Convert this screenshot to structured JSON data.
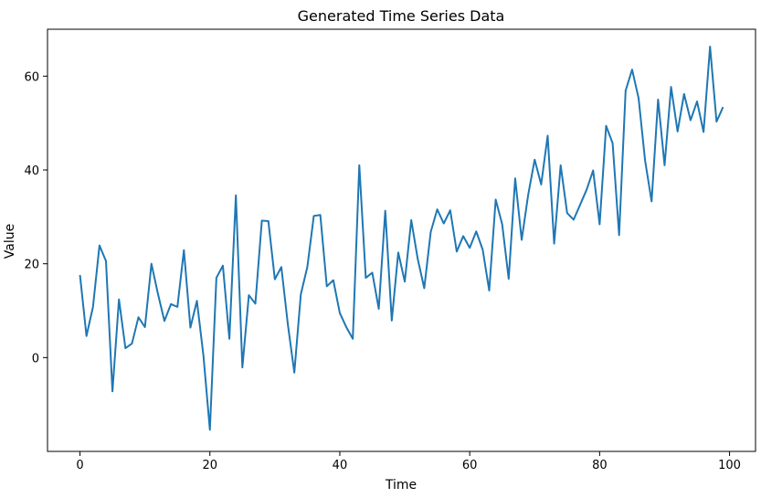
{
  "chart_data": {
    "type": "line",
    "title": "Generated Time Series Data",
    "xlabel": "Time",
    "ylabel": "Value",
    "xlim": [
      -5,
      104
    ],
    "ylim": [
      -20,
      70
    ],
    "xticks": [
      0,
      20,
      40,
      60,
      80,
      100
    ],
    "yticks": [
      0,
      20,
      40,
      60
    ],
    "grid": false,
    "series": [
      {
        "color": "#1f77b4",
        "x": [
          0,
          1,
          2,
          3,
          4,
          5,
          6,
          7,
          8,
          9,
          10,
          11,
          12,
          13,
          14,
          15,
          16,
          17,
          18,
          19,
          20,
          21,
          22,
          23,
          24,
          25,
          26,
          27,
          28,
          29,
          30,
          31,
          32,
          33,
          34,
          35,
          36,
          37,
          38,
          39,
          40,
          41,
          42,
          43,
          44,
          45,
          46,
          47,
          48,
          49,
          50,
          51,
          52,
          53,
          54,
          55,
          56,
          57,
          58,
          59,
          60,
          61,
          62,
          63,
          64,
          65,
          66,
          67,
          68,
          69,
          70,
          71,
          72,
          73,
          74,
          75,
          76,
          77,
          78,
          79,
          80,
          81,
          82,
          83,
          84,
          85,
          86,
          87,
          88,
          89,
          90,
          91,
          92,
          93,
          94,
          95,
          96,
          97,
          98,
          99
        ],
        "y": [
          17.6,
          4.6,
          10.8,
          23.9,
          20.6,
          -7.2,
          12.4,
          2.0,
          3.0,
          8.6,
          6.5,
          20.0,
          13.6,
          7.8,
          11.4,
          10.8,
          22.9,
          6.4,
          12.1,
          0.5,
          -15.4,
          17.0,
          19.6,
          4.0,
          34.6,
          -2.1,
          13.3,
          11.5,
          29.2,
          29.1,
          16.7,
          19.3,
          7.1,
          -3.2,
          13.5,
          19.3,
          30.2,
          30.4,
          15.2,
          16.5,
          9.5,
          6.5,
          4.0,
          41.0,
          17.0,
          18.1,
          10.4,
          31.3,
          7.9,
          22.4,
          16.2,
          29.3,
          21.0,
          14.8,
          26.8,
          31.6,
          28.6,
          31.4,
          22.6,
          25.9,
          23.4,
          26.9,
          23.0,
          14.3,
          33.7,
          28.4,
          16.8,
          38.2,
          25.1,
          34.7,
          42.2,
          36.9,
          47.3,
          24.3,
          41.0,
          30.8,
          29.4,
          32.6,
          35.8,
          39.9,
          28.4,
          49.4,
          45.7,
          26.1,
          56.9,
          61.4,
          55.3,
          42.0,
          33.3,
          55.0,
          41.0,
          57.7,
          48.2,
          56.2,
          50.6,
          54.6,
          48.1,
          66.3,
          50.3,
          53.4
        ]
      }
    ]
  }
}
